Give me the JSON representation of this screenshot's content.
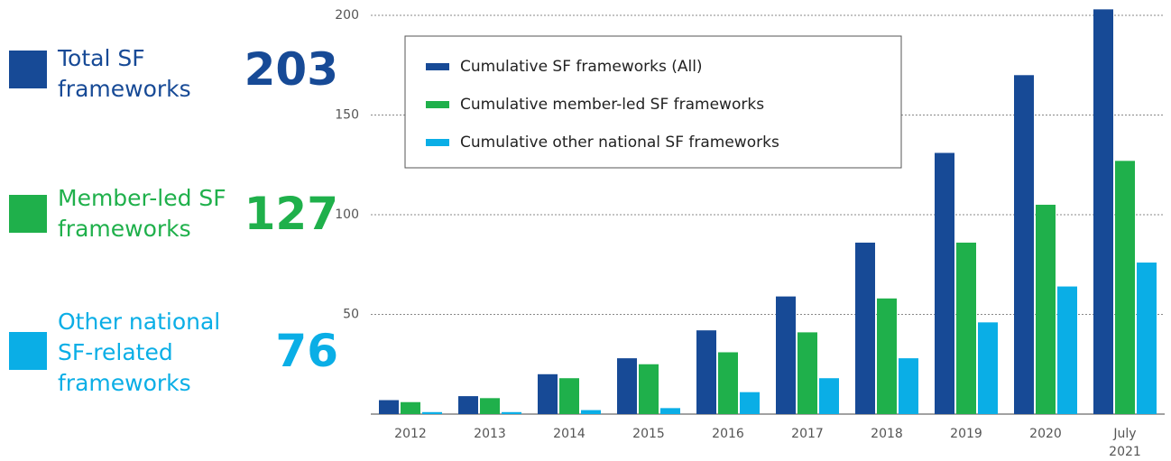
{
  "stats": [
    {
      "label": "Total SF frameworks",
      "value": 203,
      "color": "#174a96"
    },
    {
      "label": "Member-led SF frameworks",
      "value": 127,
      "color": "#1fb04b"
    },
    {
      "label": "Other national SF-related frameworks",
      "value": 76,
      "color": "#0aaee6"
    }
  ],
  "chart_data": {
    "type": "bar",
    "categories": [
      "2012",
      "2013",
      "2014",
      "2015",
      "2016",
      "2017",
      "2018",
      "2019",
      "2020",
      "July 2021"
    ],
    "series": [
      {
        "name": "Cumulative SF frameworks (All)",
        "color": "#174a96",
        "values": [
          7,
          9,
          20,
          28,
          42,
          59,
          86,
          131,
          170,
          203
        ]
      },
      {
        "name": "Cumulative member-led SF frameworks",
        "color": "#1fb04b",
        "values": [
          6,
          8,
          18,
          25,
          31,
          41,
          58,
          86,
          105,
          127
        ]
      },
      {
        "name": "Cumulative other national SF frameworks",
        "color": "#0aaee6",
        "values": [
          1,
          1,
          2,
          3,
          11,
          18,
          28,
          46,
          64,
          76
        ]
      }
    ],
    "ylim": [
      0,
      200
    ],
    "yticks": [
      50,
      100,
      150,
      200
    ],
    "grid": true
  }
}
